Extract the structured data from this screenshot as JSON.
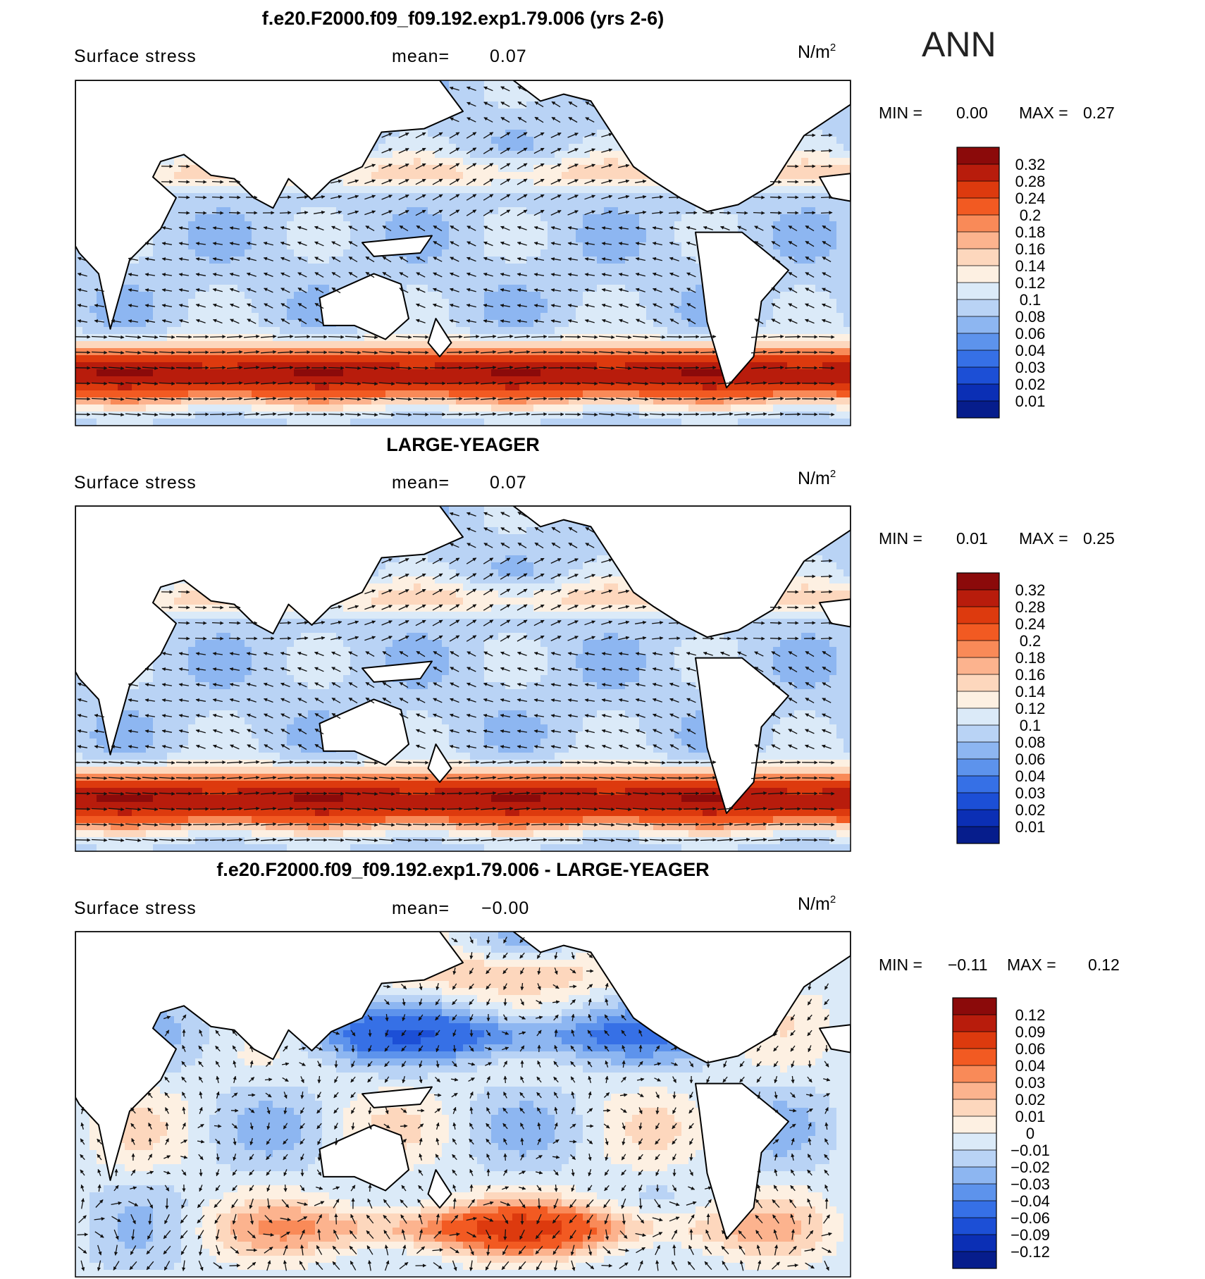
{
  "season_label": "ANN",
  "colors": {
    "land": "#ffffff",
    "coast": "#000000",
    "arrow": "#111111"
  },
  "chart_data": [
    {
      "type": "heatmap",
      "title": "f.e20.F2000.f09_f09.192.exp1.79.006 (yrs 2-6)",
      "variable": "Surface stress",
      "mean_label": "mean=",
      "mean_value": "0.07",
      "units_base": "N/m",
      "units_exp": "2",
      "min_label": "MIN =",
      "min_value": "0.00",
      "max_label": "MAX =",
      "max_value": "0.27",
      "colorbar": {
        "levels": [
          "0.32",
          "0.28",
          "0.24",
          "0.2",
          "0.18",
          "0.16",
          "0.14",
          "0.12",
          "0.1",
          "0.08",
          "0.06",
          "0.04",
          "0.03",
          "0.02",
          "0.01"
        ],
        "colors": [
          "#8b0a0a",
          "#b81c0c",
          "#dd3a0e",
          "#f25a22",
          "#f98a58",
          "#fcb38e",
          "#fdd7bd",
          "#fdf0e2",
          "#dbeaf8",
          "#b9d3f5",
          "#8db6f1",
          "#5d93ec",
          "#3670e6",
          "#1c4fd6",
          "#0b2fb5",
          "#061d8c"
        ]
      },
      "texture": "primary"
    },
    {
      "type": "heatmap",
      "title": "LARGE-YEAGER",
      "variable": "Surface stress",
      "mean_label": "mean=",
      "mean_value": "0.07",
      "units_base": "N/m",
      "units_exp": "2",
      "min_label": "MIN =",
      "min_value": "0.01",
      "max_label": "MAX =",
      "max_value": "0.25",
      "colorbar": {
        "levels": [
          "0.32",
          "0.28",
          "0.24",
          "0.2",
          "0.18",
          "0.16",
          "0.14",
          "0.12",
          "0.1",
          "0.08",
          "0.06",
          "0.04",
          "0.03",
          "0.02",
          "0.01"
        ],
        "colors": [
          "#8b0a0a",
          "#b81c0c",
          "#dd3a0e",
          "#f25a22",
          "#f98a58",
          "#fcb38e",
          "#fdd7bd",
          "#fdf0e2",
          "#dbeaf8",
          "#b9d3f5",
          "#8db6f1",
          "#5d93ec",
          "#3670e6",
          "#1c4fd6",
          "#0b2fb5",
          "#061d8c"
        ]
      },
      "texture": "primary"
    },
    {
      "type": "heatmap",
      "title": "f.e20.F2000.f09_f09.192.exp1.79.006 - LARGE-YEAGER",
      "variable": "Surface stress",
      "mean_label": "mean=",
      "mean_value": "−0.00",
      "units_base": "N/m",
      "units_exp": "2",
      "min_label": "MIN =",
      "min_value": "−0.11",
      "max_label": "MAX =",
      "max_value": "0.12",
      "colorbar": {
        "levels": [
          "0.12",
          "0.09",
          "0.06",
          "0.04",
          "0.03",
          "0.02",
          "0.01",
          "0",
          "−0.01",
          "−0.02",
          "−0.03",
          "−0.04",
          "−0.06",
          "−0.09",
          "−0.12"
        ],
        "colors": [
          "#8b0a0a",
          "#b81c0c",
          "#dd3a0e",
          "#f25a22",
          "#f98a58",
          "#fcb38e",
          "#fdd7bd",
          "#fdf0e2",
          "#dbeaf8",
          "#b9d3f5",
          "#8db6f1",
          "#5d93ec",
          "#3670e6",
          "#1c4fd6",
          "#0b2fb5",
          "#061d8c"
        ]
      },
      "texture": "difference"
    }
  ]
}
